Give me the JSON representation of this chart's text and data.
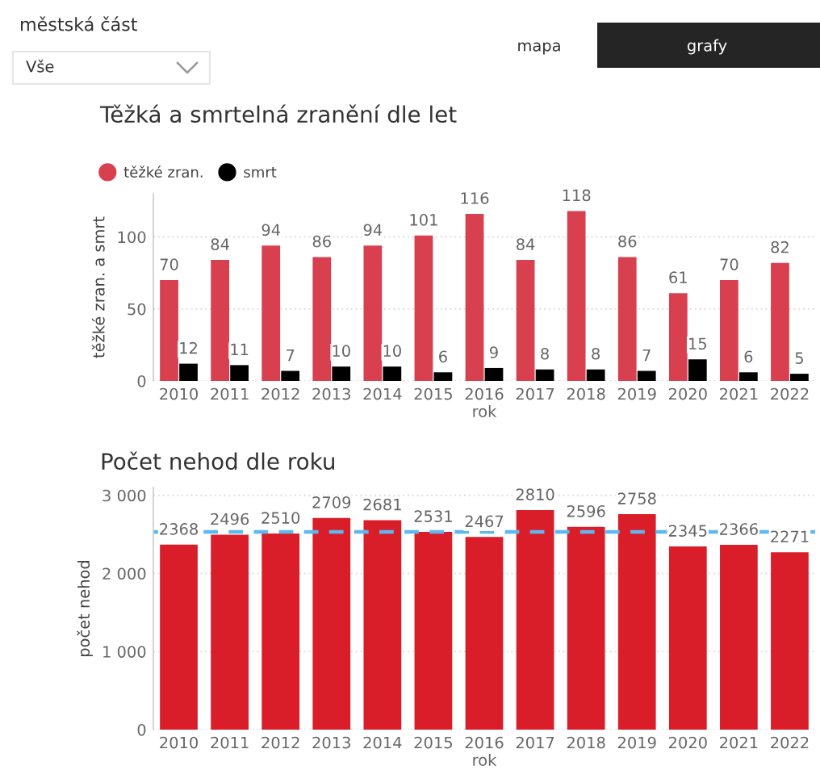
{
  "chart_data": [
    {
      "type": "other",
      "annotations": [
        "městská část",
        "Vše",
        "mapa",
        "grafy"
      ]
    },
    {
      "type": "bar",
      "title": "Těžká a smrtelná zranění dle let",
      "xlabel": "rok",
      "ylabel": "těžké zran. a smrt",
      "categories": [
        "2010",
        "2011",
        "2012",
        "2013",
        "2014",
        "2015",
        "2016",
        "2017",
        "2018",
        "2019",
        "2020",
        "2021",
        "2022"
      ],
      "series": [
        {
          "name": "těžké zran.",
          "color": "#d9404f",
          "values": [
            70,
            84,
            94,
            86,
            94,
            101,
            116,
            84,
            118,
            86,
            61,
            70,
            82
          ]
        },
        {
          "name": "smrt",
          "color": "#000000",
          "values": [
            12,
            11,
            7,
            10,
            10,
            6,
            9,
            8,
            8,
            7,
            15,
            6,
            5
          ]
        }
      ],
      "ylim": [
        0,
        130
      ],
      "yticks": [
        0,
        50,
        100
      ],
      "grid": "y",
      "legend": "top left",
      "marker": "circle",
      "data_labels": true
    },
    {
      "type": "bar",
      "title": "Počet nehod dle roku",
      "xlabel": "rok",
      "ylabel": "počet nehod",
      "categories": [
        "2010",
        "2011",
        "2012",
        "2013",
        "2014",
        "2015",
        "2016",
        "2017",
        "2018",
        "2019",
        "2020",
        "2021",
        "2022"
      ],
      "series": [
        {
          "color": "#d91e2a",
          "values": [
            2368,
            2496,
            2510,
            2709,
            2681,
            2531,
            2467,
            2810,
            2596,
            2758,
            2345,
            2366,
            2271
          ]
        }
      ],
      "ylim": [
        0,
        3100
      ],
      "yticks": [
        0,
        {
          "value": 1000,
          "label": "1 000"
        },
        {
          "value": 2000,
          "label": "2 000"
        },
        {
          "value": 3000,
          "label": "3 000"
        }
      ],
      "grid": "y",
      "data_labels": true,
      "ref_lines": [
        {
          "axis": "y",
          "value": 2531,
          "color": "#5db8f0",
          "line_style": "dashed"
        }
      ]
    }
  ]
}
